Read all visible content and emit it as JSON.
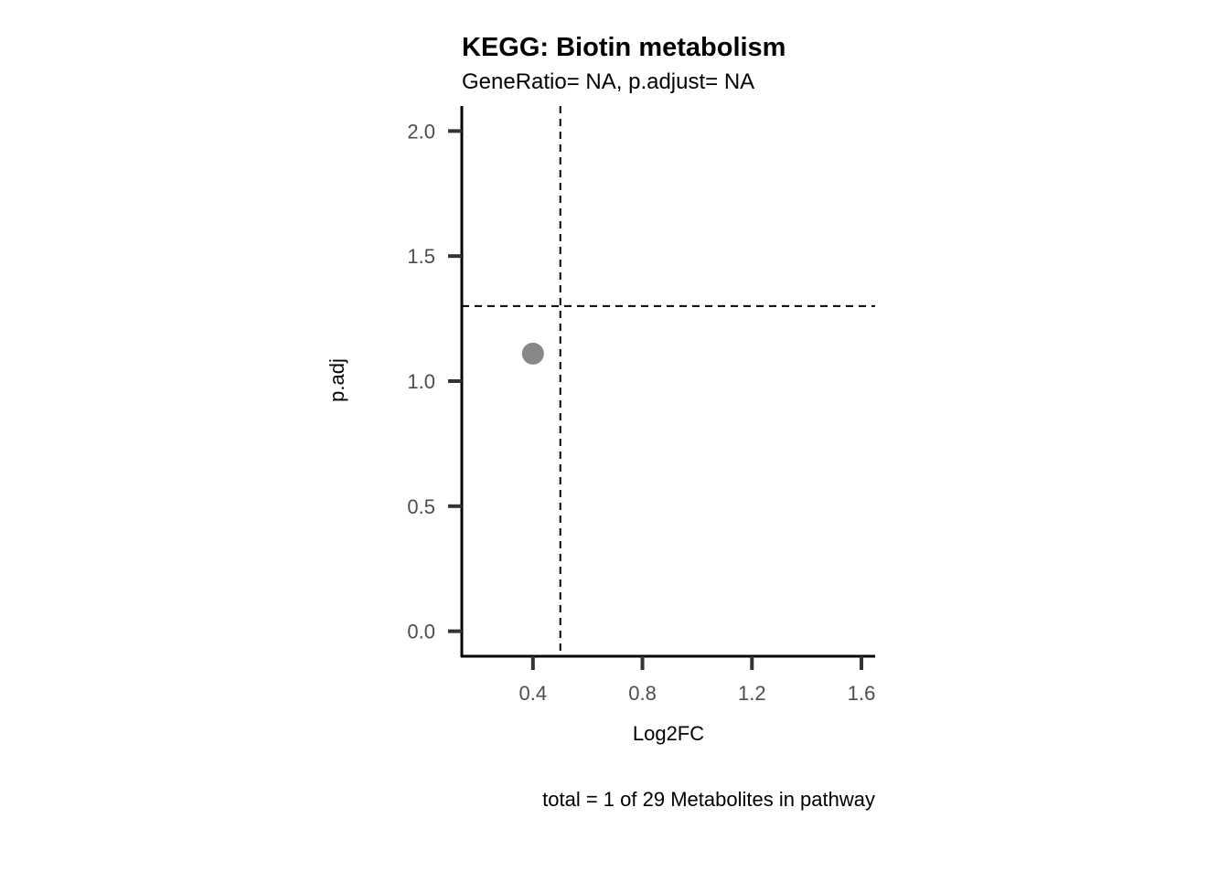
{
  "chart_data": {
    "type": "scatter",
    "title": "KEGG: Biotin metabolism",
    "subtitle": "GeneRatio= NA, p.adjust= NA",
    "xlabel": "Log2FC",
    "ylabel": "p.adj",
    "caption": "total = 1 of 29 Metabolites in pathway",
    "xlim": [
      0.14,
      1.65
    ],
    "ylim": [
      -0.1,
      2.1
    ],
    "x_ticks": [
      0.4,
      0.8,
      1.2,
      1.6
    ],
    "x_tick_labels": [
      "0.4",
      "0.8",
      "1.2",
      "1.6"
    ],
    "y_ticks": [
      0.0,
      0.5,
      1.0,
      1.5,
      2.0
    ],
    "y_tick_labels": [
      "0.0",
      "0.5",
      "1.0",
      "1.5",
      "2.0"
    ],
    "points": [
      {
        "x": 0.4,
        "y": 1.11
      }
    ],
    "reference_lines": {
      "vertical_x": 0.5,
      "horizontal_y": 1.3,
      "style": "dashed"
    },
    "grid": false,
    "legend": "none",
    "colors": {
      "point": "#888888",
      "axis": "#000000",
      "tick": "#333333",
      "reference": "#000000"
    }
  }
}
